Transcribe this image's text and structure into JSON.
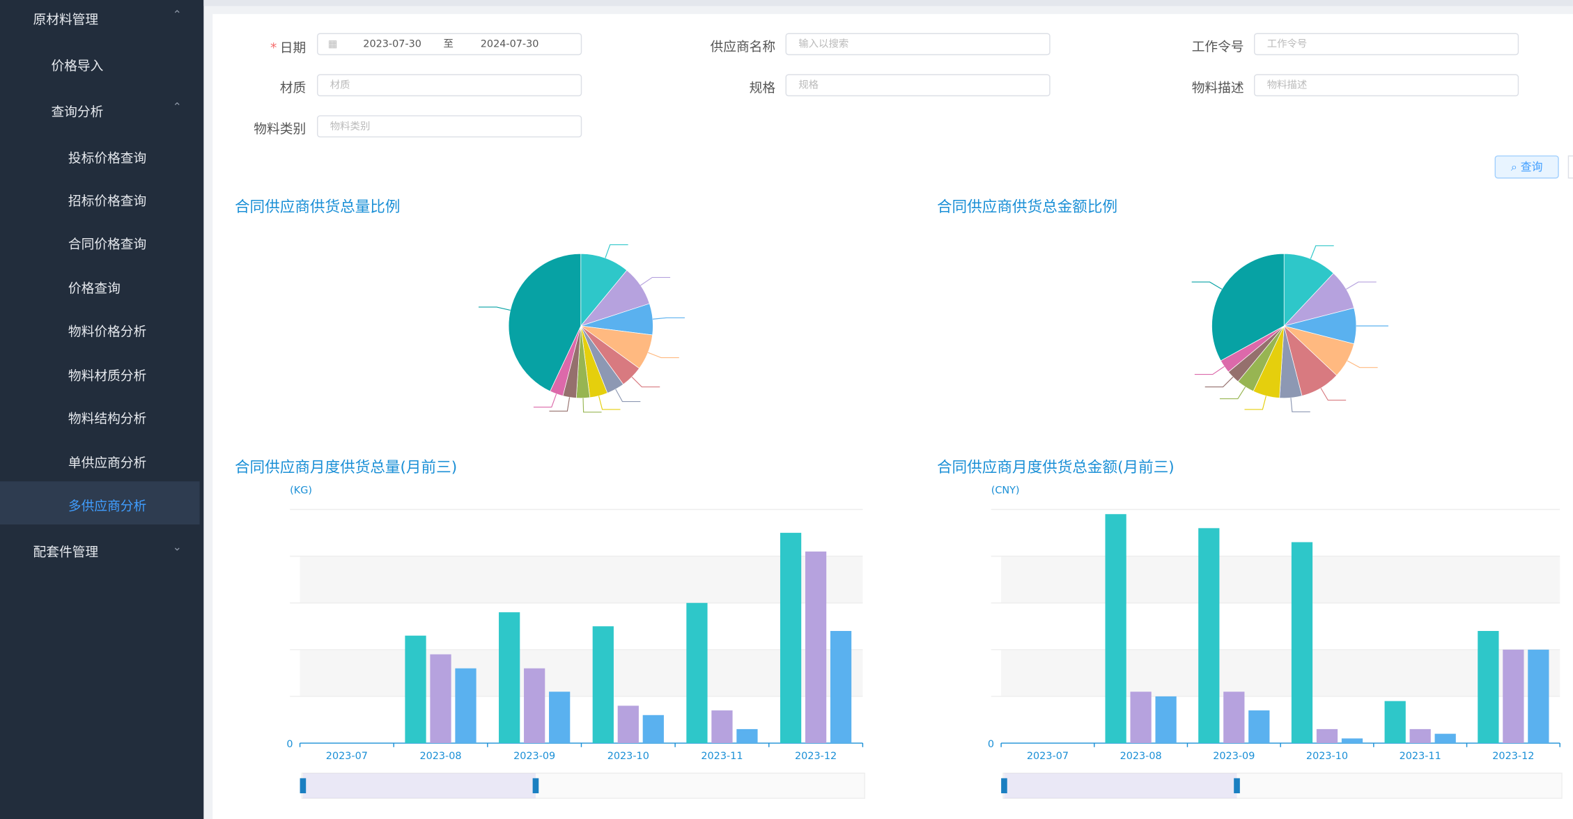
{
  "sidebar": {
    "items": [
      "原材料管理",
      "价格导入",
      "查询分析",
      "投标价格查询",
      "招标价格查询",
      "合同价格查询",
      "价格查询",
      "物料价格分析",
      "物料材质分析",
      "物料结构分析",
      "单供应商分析",
      "多供应商分析",
      "配套件管理"
    ]
  },
  "form": {
    "date": {
      "label": "日期",
      "start": "2023-07-30",
      "separator": "至",
      "end": "2024-07-30"
    },
    "fields": [
      {
        "label": "供应商名称",
        "placeholder": "输入以搜索"
      },
      {
        "label": "工作令号",
        "placeholder": "工作令号"
      },
      {
        "label": "材质",
        "placeholder": "材质"
      },
      {
        "label": "规格",
        "placeholder": "规格"
      },
      {
        "label": "物料描述",
        "placeholder": "物料描述"
      },
      {
        "label": "物料类别",
        "placeholder": "物料类别"
      }
    ],
    "search_button": "查询"
  },
  "chart_data": [
    {
      "type": "pie",
      "title": "合同供应商供货总量比例",
      "values": [
        11,
        9,
        7,
        8,
        5,
        4,
        4,
        3,
        3,
        3,
        43
      ],
      "colors": [
        "#2ec7c9",
        "#b6a2de",
        "#5ab1ef",
        "#ffb980",
        "#d87a80",
        "#8d98b3",
        "#e5cf0d",
        "#97b552",
        "#95706d",
        "#dc69aa",
        "#07a2a4"
      ]
    },
    {
      "type": "pie",
      "title": "合同供应商供货总金额比例",
      "values": [
        12,
        9,
        8,
        8,
        9,
        5,
        6,
        4,
        3,
        3,
        33
      ],
      "colors": [
        "#2ec7c9",
        "#b6a2de",
        "#5ab1ef",
        "#ffb980",
        "#d87a80",
        "#8d98b3",
        "#e5cf0d",
        "#97b552",
        "#95706d",
        "#dc69aa",
        "#07a2a4"
      ]
    },
    {
      "type": "bar",
      "title": "合同供应商月度供货总量(月前三)",
      "y_label": "(KG)",
      "categories": [
        "2023-07",
        "2023-08",
        "2023-09",
        "2023-10",
        "2023-11",
        "2023-12"
      ],
      "ylim": [
        0,
        5
      ],
      "yticks": [
        0
      ],
      "series": [
        {
          "color": "#2ec7c9",
          "values": [
            0,
            2.3,
            2.8,
            2.5,
            3.0,
            4.5
          ]
        },
        {
          "color": "#b6a2de",
          "values": [
            0,
            1.9,
            1.6,
            0.8,
            0.7,
            4.1
          ]
        },
        {
          "color": "#5ab1ef",
          "values": [
            0,
            1.6,
            1.1,
            0.6,
            0.3,
            2.4
          ]
        }
      ]
    },
    {
      "type": "bar",
      "title": "合同供应商月度供货总金额(月前三)",
      "y_label": "(CNY)",
      "categories": [
        "2023-07",
        "2023-08",
        "2023-09",
        "2023-10",
        "2023-11",
        "2023-12"
      ],
      "ylim": [
        0,
        5
      ],
      "yticks": [
        0
      ],
      "series": [
        {
          "color": "#2ec7c9",
          "values": [
            0,
            4.9,
            4.6,
            4.3,
            0.9,
            2.4
          ]
        },
        {
          "color": "#b6a2de",
          "values": [
            0,
            1.1,
            1.1,
            0.3,
            0.3,
            2.0
          ]
        },
        {
          "color": "#5ab1ef",
          "values": [
            0,
            1.0,
            0.7,
            0.1,
            0.2,
            2.0
          ]
        }
      ]
    }
  ]
}
